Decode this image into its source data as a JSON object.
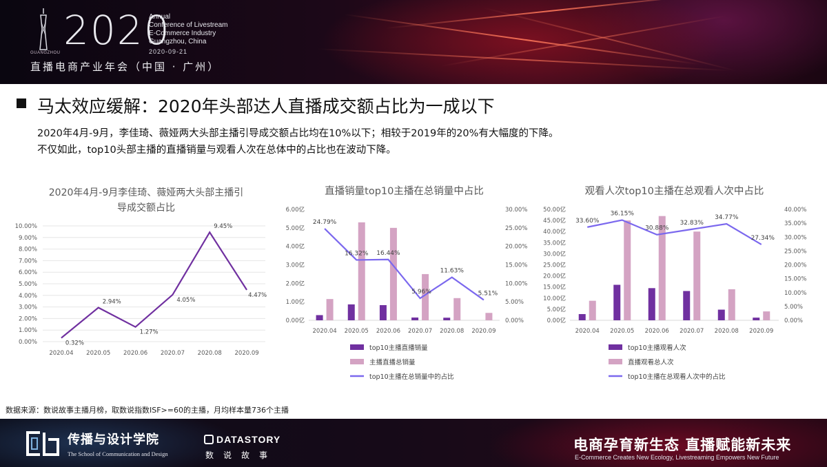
{
  "header": {
    "year": "2020",
    "conference_lines": [
      "Annual",
      "Conference of Livestream",
      "E-Commerce Industry",
      "Guangzhou, China"
    ],
    "date": "2020-09-21",
    "city_mark": "GUANGZHOU",
    "cn_title": "直播电商产业年会（中国 · 广州）"
  },
  "title": "马太效应缓解：2020年头部达人直播成交额占比为一成以下",
  "subtitle_lines": [
    "2020年4月-9月，李佳琦、薇娅两大头部主播引导成交额占比均在10%以下；相较于2019年的20%有大幅度的下降。",
    "不仅如此，top10头部主播的直播销量与观看人次在总体中的占比也在波动下降。"
  ],
  "chart_data": [
    {
      "type": "line",
      "title_lines": [
        "2020年4月-9月李佳琦、薇娅两大头部主播引",
        "导成交额占比"
      ],
      "categories": [
        "2020.04",
        "2020.05",
        "2020.06",
        "2020.07",
        "2020.08",
        "2020.09"
      ],
      "values": [
        0.32,
        2.94,
        1.27,
        4.05,
        9.45,
        4.47
      ],
      "value_labels": [
        "0.32%",
        "2.94%",
        "1.27%",
        "4.05%",
        "9.45%",
        "4.47%"
      ],
      "yticks": [
        "0.00%",
        "1.00%",
        "2.00%",
        "3.00%",
        "4.00%",
        "5.00%",
        "6.00%",
        "7.00%",
        "8.00%",
        "9.00%",
        "10.00%"
      ],
      "ylim": [
        0,
        10
      ],
      "color": "#7030a0"
    },
    {
      "type": "bar+line",
      "title": "直播销量top10主播在总销量中占比",
      "categories": [
        "2020.04",
        "2020.05",
        "2020.06",
        "2020.07",
        "2020.08",
        "2020.09"
      ],
      "series": [
        {
          "name": "top10主播直播销量",
          "axis": "left",
          "kind": "bar",
          "color": "#7030a0",
          "values": [
            0.28,
            0.86,
            0.82,
            0.15,
            0.14,
            0.0
          ]
        },
        {
          "name": "主播直播总销量",
          "axis": "left",
          "kind": "bar",
          "color": "#d4a3c3",
          "values": [
            1.15,
            5.3,
            5.0,
            2.5,
            1.2,
            0.4
          ]
        },
        {
          "name": "top10主播在总销量中的占比",
          "axis": "right",
          "kind": "line",
          "color": "#7b68ee",
          "values": [
            24.79,
            16.32,
            16.44,
            5.96,
            11.63,
            5.51
          ]
        }
      ],
      "line_labels": [
        "24.79%",
        "16.32%",
        "16.44%",
        "5.96%",
        "11.63%",
        "5.51%"
      ],
      "left_ticks": [
        "0.00亿",
        "1.00亿",
        "2.00亿",
        "3.00亿",
        "4.00亿",
        "5.00亿",
        "6.00亿"
      ],
      "right_ticks": [
        "0.00%",
        "5.00%",
        "10.00%",
        "15.00%",
        "20.00%",
        "25.00%",
        "30.00%"
      ],
      "left_lim": [
        0,
        6
      ],
      "right_lim": [
        0,
        30
      ]
    },
    {
      "type": "bar+line",
      "title": "观看人次top10主播在总观看人次中占比",
      "categories": [
        "2020.04",
        "2020.05",
        "2020.06",
        "2020.07",
        "2020.08",
        "2020.09"
      ],
      "series": [
        {
          "name": "top10主播观看人次",
          "axis": "left",
          "kind": "bar",
          "color": "#7030a0",
          "values": [
            2.8,
            16.0,
            14.5,
            13.2,
            4.8,
            1.2
          ]
        },
        {
          "name": "直播观看总人次",
          "axis": "left",
          "kind": "bar",
          "color": "#d4a3c3",
          "values": [
            8.8,
            45.0,
            47.0,
            40.0,
            14.0,
            4.0
          ]
        },
        {
          "name": "top10主播在总观看人次中的占比",
          "axis": "right",
          "kind": "line",
          "color": "#7b68ee",
          "values": [
            33.6,
            36.15,
            30.88,
            32.83,
            34.77,
            27.34
          ]
        }
      ],
      "line_labels": [
        "33.60%",
        "36.15%",
        "30.88%",
        "32.83%",
        "34.77%",
        "27.34%"
      ],
      "left_ticks": [
        "0.00亿",
        "5.00亿",
        "10.00亿",
        "15.00亿",
        "20.00亿",
        "25.00亿",
        "30.00亿",
        "35.00亿",
        "40.00亿",
        "45.00亿",
        "50.00亿"
      ],
      "right_ticks": [
        "0.00%",
        "5.00%",
        "10.00%",
        "15.00%",
        "20.00%",
        "25.00%",
        "30.00%",
        "35.00%",
        "40.00%"
      ],
      "left_lim": [
        0,
        50
      ],
      "right_lim": [
        0,
        40
      ]
    }
  ],
  "source": "数据来源：数说故事主播月榜，取数说指数ISF>=60的主播，月均样本量736个主播",
  "footer": {
    "school_cn": "传播与设计学院",
    "school_en": "The School of Communication and Design",
    "datastory_en": "DATASTORY",
    "datastory_cn": "数说故事",
    "slogan": "电商孕育新生态 直播赋能新未来",
    "slogan_en": "E-Commerce Creates New Ecology, Livestreaming Empowers New Future"
  }
}
